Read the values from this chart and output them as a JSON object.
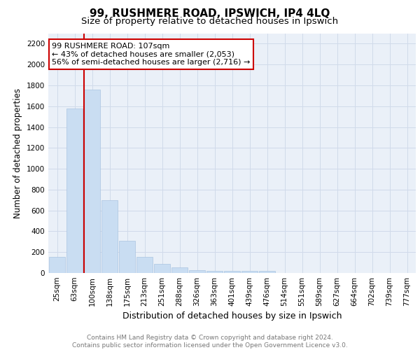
{
  "title1": "99, RUSHMERE ROAD, IPSWICH, IP4 4LQ",
  "title2": "Size of property relative to detached houses in Ipswich",
  "xlabel": "Distribution of detached houses by size in Ipswich",
  "ylabel": "Number of detached properties",
  "categories": [
    "25sqm",
    "63sqm",
    "100sqm",
    "138sqm",
    "175sqm",
    "213sqm",
    "251sqm",
    "288sqm",
    "326sqm",
    "363sqm",
    "401sqm",
    "439sqm",
    "476sqm",
    "514sqm",
    "551sqm",
    "589sqm",
    "627sqm",
    "664sqm",
    "702sqm",
    "739sqm",
    "777sqm"
  ],
  "values": [
    155,
    1580,
    1760,
    700,
    310,
    155,
    90,
    55,
    30,
    20,
    20,
    20,
    20,
    0,
    0,
    0,
    0,
    0,
    0,
    0,
    0
  ],
  "bar_color": "#c9ddf2",
  "bar_edge_color": "#aac4e0",
  "vline_color": "#cc0000",
  "annotation_text": "99 RUSHMERE ROAD: 107sqm\n← 43% of detached houses are smaller (2,053)\n56% of semi-detached houses are larger (2,716) →",
  "annotation_box_color": "#ffffff",
  "annotation_box_edge": "#cc0000",
  "ylim": [
    0,
    2300
  ],
  "yticks": [
    0,
    200,
    400,
    600,
    800,
    1000,
    1200,
    1400,
    1600,
    1800,
    2000,
    2200
  ],
  "grid_color": "#d0daea",
  "bg_color": "#eaf0f8",
  "footer_text": "Contains HM Land Registry data © Crown copyright and database right 2024.\nContains public sector information licensed under the Open Government Licence v3.0.",
  "title1_fontsize": 11,
  "title2_fontsize": 9.5,
  "xlabel_fontsize": 9,
  "ylabel_fontsize": 8.5,
  "tick_fontsize": 7.5,
  "annotation_fontsize": 8,
  "footer_fontsize": 6.5
}
